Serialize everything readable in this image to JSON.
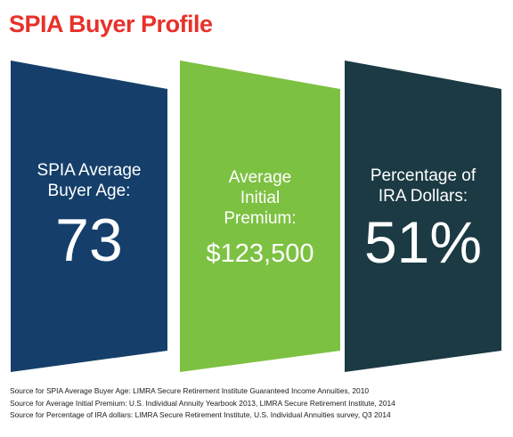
{
  "title": "SPIA Buyer Profile",
  "colors": {
    "title": "#e8312a",
    "panel_1": "#153f6a",
    "panel_2": "#7dc142",
    "panel_3": "#1b3a43",
    "text_on_panels": "#ffffff"
  },
  "panels": [
    {
      "label_lines": [
        "SPIA Average",
        "Buyer Age:"
      ],
      "value": "73"
    },
    {
      "label_lines": [
        "Average",
        "Initial",
        "Premium:"
      ],
      "value": "$123,500"
    },
    {
      "label_lines": [
        "Percentage of",
        "IRA Dollars:"
      ],
      "value": "51%"
    }
  ],
  "sources": [
    "Source for SPIA Average Buyer Age: LIMRA Secure Retirement Institute Guaranteed Income Annuities, 2010",
    "Source for Average Initial Premium: U.S. Individual Annuity Yearbook 2013, LIMRA Secure Retirement Institute, 2014",
    "Source for Percentage of IRA dollars: LIMRA Secure Retirement Institute, U.S. Individual Annuities survey, Q3 2014"
  ]
}
